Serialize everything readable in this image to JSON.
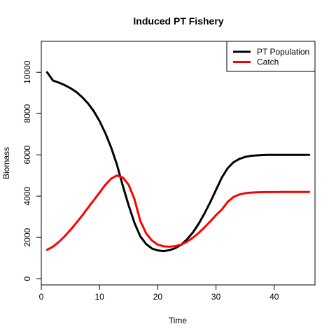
{
  "chart_data": {
    "type": "line",
    "title": "Induced PT Fishery",
    "xlabel": "Time",
    "ylabel": "Biomass",
    "xlim": [
      0,
      47
    ],
    "ylim": [
      -300,
      11500
    ],
    "x_ticks": [
      0,
      10,
      20,
      30,
      40
    ],
    "y_ticks": [
      0,
      2000,
      4000,
      6000,
      8000,
      10000
    ],
    "x_tick_labels": [
      "0",
      "10",
      "20",
      "30",
      "40"
    ],
    "y_tick_labels": [
      "0",
      "2000",
      "4000",
      "6000",
      "8000",
      "10000"
    ],
    "grid": false,
    "legend_position": "top-right",
    "x": [
      1,
      2,
      3,
      4,
      5,
      6,
      7,
      8,
      9,
      10,
      11,
      12,
      13,
      14,
      15,
      16,
      17,
      18,
      19,
      20,
      21,
      22,
      23,
      24,
      25,
      26,
      27,
      28,
      29,
      30,
      31,
      32,
      33,
      34,
      35,
      36,
      37,
      38,
      39,
      40,
      41,
      42,
      43,
      44,
      45,
      46
    ],
    "series": [
      {
        "name": "PT Population",
        "color": "#000000",
        "values": [
          10000,
          9600,
          9500,
          9380,
          9230,
          9050,
          8800,
          8500,
          8120,
          7640,
          7050,
          6350,
          5520,
          4500,
          3550,
          2700,
          2050,
          1680,
          1460,
          1370,
          1340,
          1380,
          1480,
          1640,
          1900,
          2230,
          2650,
          3150,
          3700,
          4300,
          4900,
          5350,
          5640,
          5800,
          5900,
          5950,
          5975,
          5990,
          6000,
          6000,
          6000,
          6000,
          6000,
          6000,
          6000,
          6000
        ]
      },
      {
        "name": "Catch",
        "color": "#ff0000",
        "values": [
          1400,
          1550,
          1780,
          2050,
          2360,
          2700,
          3050,
          3430,
          3800,
          4170,
          4550,
          4850,
          5000,
          4900,
          4550,
          3850,
          2800,
          2200,
          1850,
          1650,
          1570,
          1550,
          1580,
          1650,
          1790,
          1980,
          2210,
          2480,
          2770,
          3080,
          3350,
          3720,
          3960,
          4080,
          4140,
          4170,
          4185,
          4192,
          4196,
          4198,
          4200,
          4200,
          4200,
          4200,
          4200,
          4200
        ]
      }
    ]
  }
}
